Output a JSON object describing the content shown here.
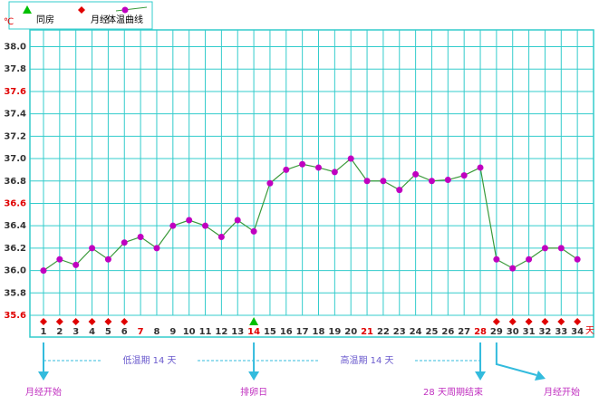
{
  "chart_data": {
    "type": "line",
    "unit": "℃",
    "x_unit": "天",
    "x": [
      1,
      2,
      3,
      4,
      5,
      6,
      7,
      8,
      9,
      10,
      11,
      12,
      13,
      14,
      15,
      16,
      17,
      18,
      19,
      20,
      21,
      22,
      23,
      24,
      25,
      26,
      27,
      28,
      29,
      30,
      31,
      32,
      33,
      34
    ],
    "xlim": [
      0.16,
      35
    ],
    "highlight_x": [
      7,
      14,
      21,
      28
    ],
    "highlight_color": "#e00000",
    "series": [
      {
        "name": "体温曲线",
        "color": "#3a9a3a",
        "marker_color": "#c000c0",
        "values": [
          36.0,
          36.1,
          36.05,
          36.2,
          36.1,
          36.25,
          36.3,
          36.2,
          36.4,
          36.45,
          36.4,
          36.3,
          36.45,
          36.35,
          36.78,
          36.9,
          36.95,
          36.92,
          36.88,
          37.0,
          36.8,
          36.8,
          36.72,
          36.86,
          36.8,
          36.81,
          36.85,
          36.92,
          36.1,
          36.02,
          36.1,
          36.2,
          36.2,
          36.1
        ]
      }
    ],
    "markers": [
      {
        "name": "同房",
        "color": "#00c000",
        "shape": "triangle",
        "x": [
          14
        ]
      },
      {
        "name": "月经",
        "color": "#e00000",
        "shape": "diamond",
        "x": [
          1,
          2,
          3,
          4,
          5,
          6,
          29,
          30,
          31,
          32,
          33,
          34
        ]
      }
    ],
    "ylim": [
      35.6,
      38.15
    ],
    "yticks": [
      {
        "value": 38,
        "label": "38.0"
      },
      37.8,
      37.6,
      37.4,
      37.2,
      {
        "value": 37,
        "label": "37.0"
      },
      36.8,
      36.6,
      36.4,
      36.2,
      {
        "value": 36,
        "label": "36.0"
      },
      35.8,
      35.6
    ],
    "highlight_yticks": [
      37.6,
      36.6,
      35.6
    ],
    "grid": true,
    "grid_color": "#33cccc",
    "annotations": [
      "低温期 14 天",
      "高温期 14 天",
      "月经开始",
      "排卵日",
      "28 天周期结束",
      "月经开始"
    ]
  }
}
